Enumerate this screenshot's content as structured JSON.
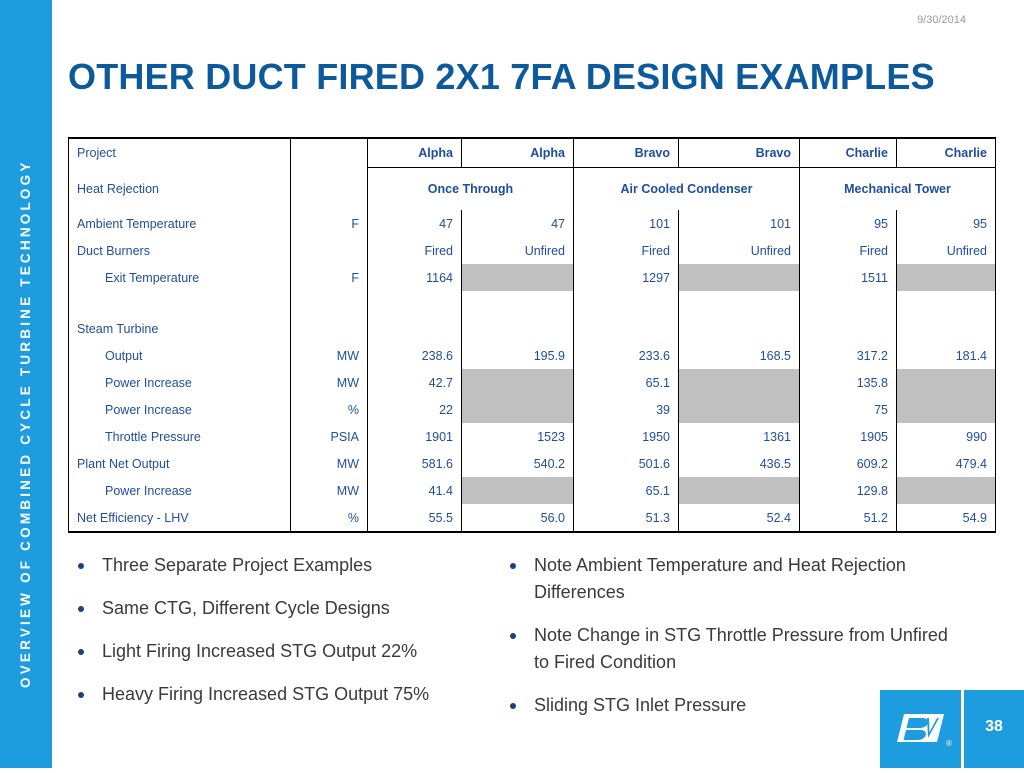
{
  "sidebar": {
    "text": "OVERVIEW OF COMBINED CYCLE TURBINE TECHNOLOGY"
  },
  "date": "9/30/2014",
  "title": "OTHER DUCT FIRED 2X1 7FA DESIGN EXAMPLES",
  "table": {
    "project_label": "Project",
    "projects": [
      "Alpha",
      "Alpha",
      "Bravo",
      "Bravo",
      "Charlie",
      "Charlie"
    ],
    "heat_rejection_label": "Heat Rejection",
    "heat_rejection": [
      "Once Through",
      "Air Cooled Condenser",
      "Mechanical Tower"
    ],
    "rows": [
      {
        "label": "Ambient Temperature",
        "unit": "F",
        "values": [
          "47",
          "47",
          "101",
          "101",
          "95",
          "95"
        ]
      },
      {
        "label": "Duct Burners",
        "unit": "",
        "values": [
          "Fired",
          "Unfired",
          "Fired",
          "Unfired",
          "Fired",
          "Unfired"
        ]
      },
      {
        "label": "Exit Temperature",
        "unit": "F",
        "values": [
          "1164",
          "",
          "1297",
          "",
          "1511",
          ""
        ]
      },
      {
        "label": "Steam Turbine",
        "unit": "",
        "values": [
          "",
          "",
          "",
          "",
          "",
          ""
        ]
      },
      {
        "label": "Output",
        "unit": "MW",
        "values": [
          "238.6",
          "195.9",
          "233.6",
          "168.5",
          "317.2",
          "181.4"
        ]
      },
      {
        "label": "Power Increase",
        "unit": "MW",
        "values": [
          "42.7",
          "",
          "65.1",
          "",
          "135.8",
          ""
        ]
      },
      {
        "label": "Power Increase",
        "unit": "%",
        "values": [
          "22",
          "",
          "39",
          "",
          "75",
          ""
        ]
      },
      {
        "label": "Throttle Pressure",
        "unit": "PSIA",
        "values": [
          "1901",
          "1523",
          "1950",
          "1361",
          "1905",
          "990"
        ]
      },
      {
        "label": "Plant Net Output",
        "unit": "MW",
        "values": [
          "581.6",
          "540.2",
          "501.6",
          "436.5",
          "609.2",
          "479.4"
        ]
      },
      {
        "label": "Power Increase",
        "unit": "MW",
        "values": [
          "41.4",
          "",
          "65.1",
          "",
          "129.8",
          ""
        ]
      },
      {
        "label": "Net Efficiency - LHV",
        "unit": "%",
        "values": [
          "55.5",
          "56.0",
          "51.3",
          "52.4",
          "51.2",
          "54.9"
        ]
      }
    ]
  },
  "bullets_left": [
    "Three Separate Project Examples",
    "Same CTG, Different Cycle Designs",
    "Light Firing Increased STG Output 22%",
    "Heavy Firing Increased STG Output 75%"
  ],
  "bullets_right": [
    "Note Ambient Temperature and Heat Rejection Differences",
    "Note Change in STG Throttle Pressure from Unfired to Fired Condition",
    "Sliding STG Inlet Pressure"
  ],
  "logo": {
    "icon": "bv-logo-icon",
    "text": "BV",
    "mark": "®"
  },
  "page_number": "38",
  "colors": {
    "accent": "#1e9ce0",
    "title": "#0c5a9b",
    "table_text": "#1f4e9c",
    "grey_cell": "#c0c0c0"
  }
}
